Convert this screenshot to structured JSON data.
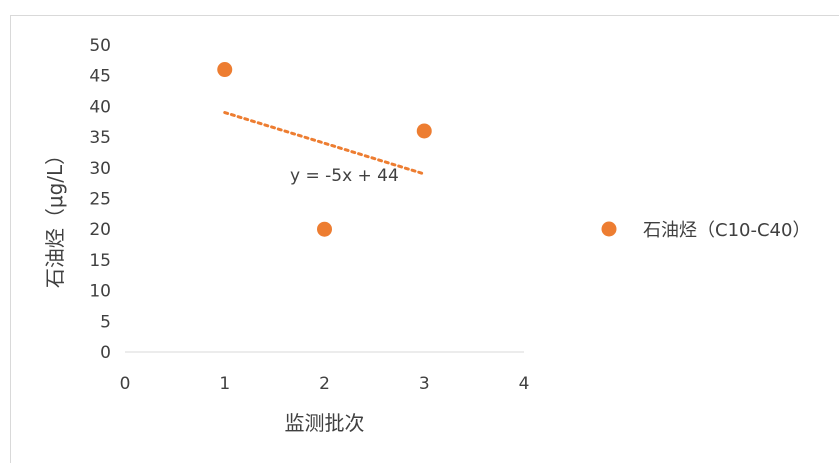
{
  "chart_data": {
    "type": "scatter",
    "title": "",
    "xlabel": "监测批次",
    "ylabel": "石油烃（μg/L）",
    "xlim": [
      0,
      4
    ],
    "ylim": [
      0,
      50
    ],
    "xticks": [
      "0",
      "1",
      "2",
      "3",
      "4"
    ],
    "yticks": [
      "0",
      "5",
      "10",
      "15",
      "20",
      "25",
      "30",
      "35",
      "40",
      "45",
      "50"
    ],
    "grid": false,
    "legend_position": "right",
    "series": [
      {
        "name": "石油烃（C10-C40）",
        "color": "#ED7D31",
        "marker": "circle",
        "x": [
          1,
          2,
          3
        ],
        "y": [
          46,
          20,
          36
        ]
      }
    ],
    "trendline": {
      "type": "linear",
      "equation": "y = -5x + 44",
      "slope": -5,
      "intercept": 44,
      "x_range": [
        1,
        3
      ],
      "color": "#ED7D31",
      "style": "dotted"
    }
  }
}
